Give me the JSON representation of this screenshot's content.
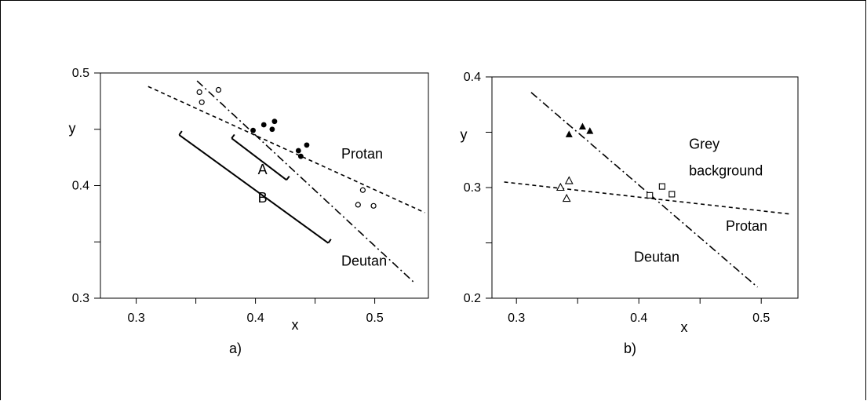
{
  "chart_data": [
    {
      "type": "scatter",
      "panel_label": "a)",
      "xlabel": "x",
      "ylabel": "y",
      "xlim": [
        0.27,
        0.545
      ],
      "ylim": [
        0.3,
        0.5
      ],
      "xticks": [
        0.3,
        0.35,
        0.4,
        0.45,
        0.5
      ],
      "xtick_labels": [
        "0.3",
        "",
        "0.4",
        "",
        "0.5"
      ],
      "yticks": [
        0.3,
        0.35,
        0.4,
        0.45,
        0.5
      ],
      "ytick_labels": [
        "0.3",
        "",
        "0.4",
        "",
        "0.5"
      ],
      "y_label_at": 0.451,
      "series": [
        {
          "marker": "open-circle",
          "points": [
            [
              0.353,
              0.483
            ],
            [
              0.355,
              0.474
            ],
            [
              0.369,
              0.485
            ],
            [
              0.49,
              0.396
            ],
            [
              0.486,
              0.383
            ],
            [
              0.499,
              0.382
            ]
          ]
        },
        {
          "marker": "filled-circle",
          "points": [
            [
              0.398,
              0.449
            ],
            [
              0.407,
              0.454
            ],
            [
              0.414,
              0.45
            ],
            [
              0.416,
              0.457
            ],
            [
              0.436,
              0.431
            ],
            [
              0.438,
              0.426
            ],
            [
              0.443,
              0.436
            ]
          ]
        }
      ],
      "lines": [
        {
          "name": "Protan",
          "style": "dashed",
          "from": [
            0.31,
            0.488
          ],
          "to": [
            0.542,
            0.376
          ]
        },
        {
          "name": "Deutan",
          "style": "dash-dot",
          "from": [
            0.351,
            0.493
          ],
          "to": [
            0.533,
            0.314
          ]
        }
      ],
      "brackets": [
        {
          "name": "A",
          "from": [
            0.38,
            0.442
          ],
          "to": [
            0.426,
            0.405
          ]
        },
        {
          "name": "B",
          "from": [
            0.336,
            0.445
          ],
          "to": [
            0.461,
            0.349
          ]
        }
      ],
      "annotations": [
        {
          "text": "Protan",
          "at": [
            0.472,
            0.424
          ]
        },
        {
          "text": "Deutan",
          "at": [
            0.472,
            0.329
          ]
        },
        {
          "text": "A",
          "at": [
            0.402,
            0.41
          ]
        },
        {
          "text": "B",
          "at": [
            0.402,
            0.385
          ]
        }
      ]
    },
    {
      "type": "scatter",
      "panel_label": "b)",
      "xlabel": "x",
      "ylabel": "y",
      "xlim": [
        0.28,
        0.53
      ],
      "ylim": [
        0.2,
        0.4
      ],
      "xticks": [
        0.3,
        0.35,
        0.4,
        0.45,
        0.5
      ],
      "xtick_labels": [
        "0.3",
        "",
        "0.4",
        "",
        "0.5"
      ],
      "yticks": [
        0.2,
        0.25,
        0.3,
        0.35,
        0.4
      ],
      "ytick_labels": [
        "0.2",
        "",
        "0.3",
        "",
        "0.4"
      ],
      "y_label_at": 0.348,
      "series": [
        {
          "marker": "filled-triangle",
          "points": [
            [
              0.343,
              0.348
            ],
            [
              0.354,
              0.355
            ],
            [
              0.36,
              0.351
            ]
          ]
        },
        {
          "marker": "open-triangle",
          "points": [
            [
              0.336,
              0.3
            ],
            [
              0.343,
              0.306
            ],
            [
              0.341,
              0.29
            ]
          ]
        },
        {
          "marker": "open-square",
          "points": [
            [
              0.409,
              0.293
            ],
            [
              0.419,
              0.301
            ],
            [
              0.427,
              0.294
            ]
          ]
        }
      ],
      "lines": [
        {
          "name": "Protan",
          "style": "dashed",
          "from": [
            0.29,
            0.305
          ],
          "to": [
            0.524,
            0.276
          ]
        },
        {
          "name": "Deutan",
          "style": "dash-dot",
          "from": [
            0.312,
            0.386
          ],
          "to": [
            0.497,
            0.21
          ]
        }
      ],
      "annotations": [
        {
          "text": "Grey",
          "at": [
            0.441,
            0.335
          ]
        },
        {
          "text": "background",
          "at": [
            0.441,
            0.311
          ]
        },
        {
          "text": "Protan",
          "at": [
            0.471,
            0.261
          ]
        },
        {
          "text": "Deutan",
          "at": [
            0.396,
            0.233
          ]
        }
      ]
    }
  ]
}
